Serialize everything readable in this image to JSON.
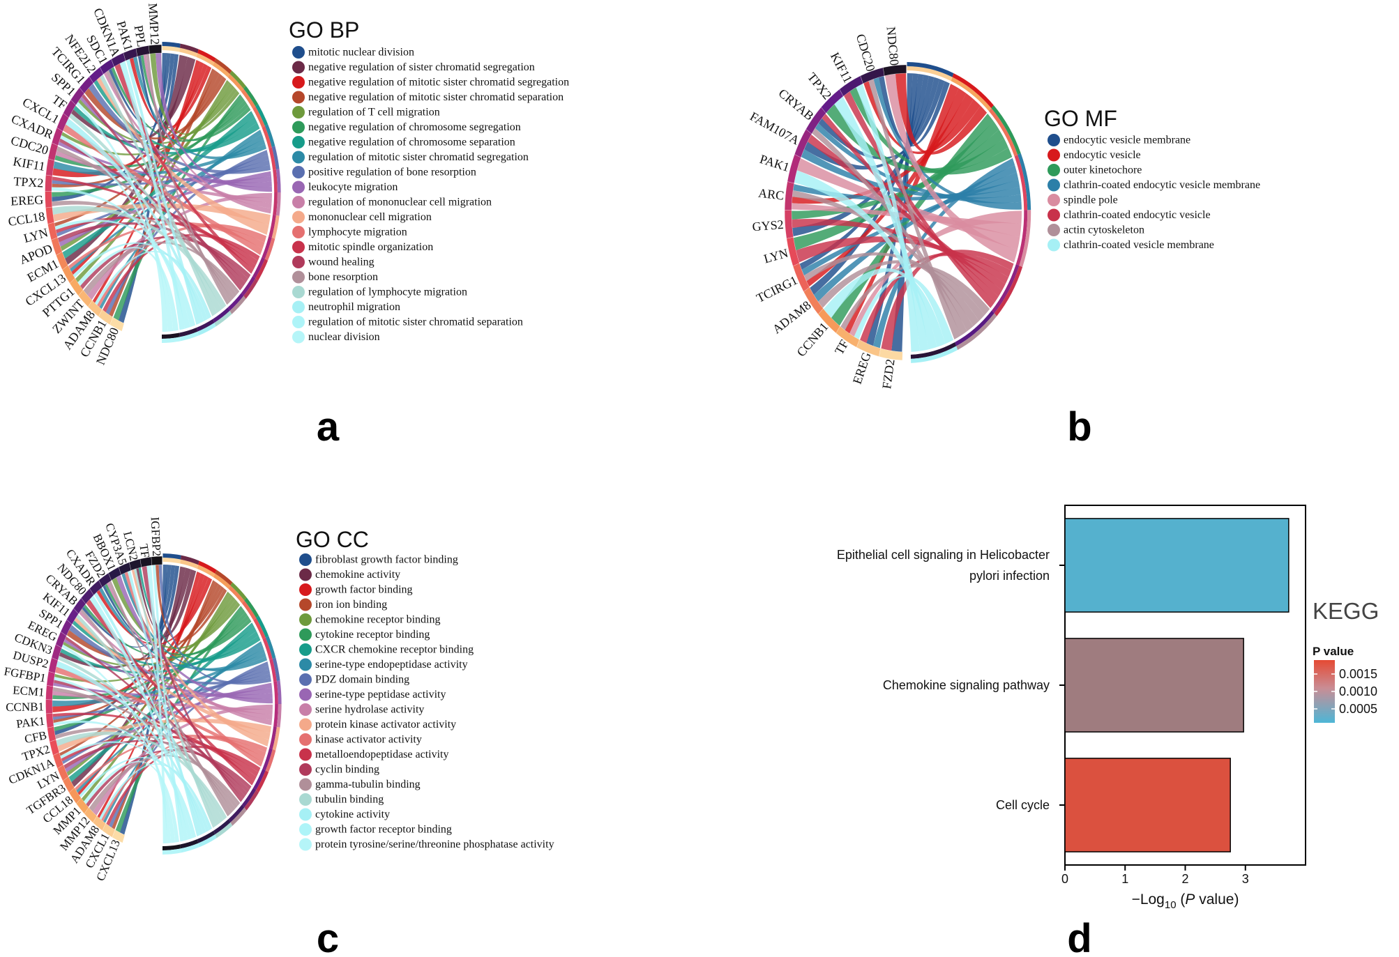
{
  "panel_labels": {
    "a": "a",
    "b": "b",
    "c": "c",
    "d": "d"
  },
  "chart_data": [
    {
      "type": "chord",
      "panel": "a",
      "title": "GO BP",
      "genes": [
        "NDC80",
        "CCNB1",
        "ADAM8",
        "ZWINT",
        "PTTG1",
        "CXCL13",
        "ECM1",
        "APOD",
        "LYN",
        "CCL18",
        "EREG",
        "TPX2",
        "KIF11",
        "CDC20",
        "CXADR",
        "CXCL1",
        "TF",
        "SPP1",
        "TCIRG1",
        "NFE2L2",
        "SDC1",
        "CDKN1A",
        "PAK1",
        "PPL",
        "MMP12"
      ],
      "legend": [
        {
          "label": "mitotic nuclear division",
          "color": "#1f4e8c"
        },
        {
          "label": "negative regulation of sister chromatid segregation",
          "color": "#6b2a47"
        },
        {
          "label": "negative regulation of mitotic sister chromatid segregation",
          "color": "#d7191c"
        },
        {
          "label": "negative regulation of mitotic sister chromatid separation",
          "color": "#b5472a"
        },
        {
          "label": "regulation of T cell migration",
          "color": "#6e9a3c"
        },
        {
          "label": "negative regulation of chromosome segregation",
          "color": "#2e9a5a"
        },
        {
          "label": "negative regulation of chromosome separation",
          "color": "#179c8a"
        },
        {
          "label": "regulation of mitotic sister chromatid segregation",
          "color": "#2c8aa6"
        },
        {
          "label": "positive regulation of bone resorption",
          "color": "#5a6fb0"
        },
        {
          "label": "leukocyte migration",
          "color": "#9966b3"
        },
        {
          "label": "regulation of mononuclear cell migration",
          "color": "#c87fa8"
        },
        {
          "label": "mononuclear cell migration",
          "color": "#f4a98a"
        },
        {
          "label": "lymphocyte migration",
          "color": "#e57070"
        },
        {
          "label": "mitotic spindle organization",
          "color": "#c8324b"
        },
        {
          "label": "wound healing",
          "color": "#b03a5b"
        },
        {
          "label": "bone resorption",
          "color": "#b08f99"
        },
        {
          "label": "regulation of lymphocyte migration",
          "color": "#a9d9d2"
        },
        {
          "label": "neutrophil migration",
          "color": "#a6f0f5"
        },
        {
          "label": "regulation of mitotic sister chromatid separation",
          "color": "#aef4f8"
        },
        {
          "label": "nuclear division",
          "color": "#b5f5f8"
        }
      ]
    },
    {
      "type": "chord",
      "panel": "b",
      "title": "GO MF",
      "genes": [
        "FZD2",
        "EREG",
        "TF",
        "CCNB1",
        "ADAM8",
        "TCIRG1",
        "LYN",
        "GYS2",
        "ARC",
        "PAK1",
        "FAM107A",
        "CRYAB",
        "TPX2",
        "KIF11",
        "CDC20",
        "NDC80"
      ],
      "legend": [
        {
          "label": "endocytic vesicle membrane",
          "color": "#1f4e8c"
        },
        {
          "label": "endocytic vesicle",
          "color": "#d7191c"
        },
        {
          "label": "outer kinetochore",
          "color": "#2e9a5a"
        },
        {
          "label": "clathrin-coated endocytic vesicle membrane",
          "color": "#2c7fa8"
        },
        {
          "label": "spindle pole",
          "color": "#d98ca0"
        },
        {
          "label": "clathrin-coated endocytic vesicle",
          "color": "#c8324b"
        },
        {
          "label": "actin cytoskeleton",
          "color": "#b08f99"
        },
        {
          "label": "clathrin-coated vesicle membrane",
          "color": "#a6f0f5"
        }
      ]
    },
    {
      "type": "chord",
      "panel": "c",
      "title": "GO CC",
      "genes": [
        "CXCL13",
        "CXCL1",
        "ADAM8",
        "MMP12",
        "MMP1",
        "CCL18",
        "TGFBR3",
        "LYN",
        "CDKN1A",
        "TPX2",
        "CFB",
        "PAK1",
        "CCNB1",
        "ECM1",
        "FGFBP1",
        "DUSP2",
        "CDKN3",
        "EREG",
        "SPP1",
        "KIF11",
        "CRYAB",
        "NDC80",
        "CXADR",
        "FZD2",
        "BBOX1",
        "CYP3A5",
        "LCN2",
        "TF",
        "IGFBP2"
      ],
      "legend": [
        {
          "label": "fibroblast growth factor binding",
          "color": "#1f4e8c"
        },
        {
          "label": "chemokine activity",
          "color": "#6b2a47"
        },
        {
          "label": "growth factor binding",
          "color": "#d7191c"
        },
        {
          "label": "iron ion binding",
          "color": "#b5472a"
        },
        {
          "label": "chemokine receptor binding",
          "color": "#6e9a3c"
        },
        {
          "label": "cytokine receptor binding",
          "color": "#2e9a5a"
        },
        {
          "label": "CXCR chemokine receptor binding",
          "color": "#179c8a"
        },
        {
          "label": "serine-type endopeptidase activity",
          "color": "#2c8aa6"
        },
        {
          "label": "PDZ domain binding",
          "color": "#5a6fb0"
        },
        {
          "label": "serine-type peptidase activity",
          "color": "#9966b3"
        },
        {
          "label": "serine hydrolase activity",
          "color": "#c87fa8"
        },
        {
          "label": "protein kinase activator activity",
          "color": "#f4a98a"
        },
        {
          "label": "kinase activator activity",
          "color": "#e57070"
        },
        {
          "label": "metalloendopeptidase activity",
          "color": "#c8324b"
        },
        {
          "label": "cyclin binding",
          "color": "#b03a5b"
        },
        {
          "label": "gamma-tubulin binding",
          "color": "#b08f99"
        },
        {
          "label": "tubulin binding",
          "color": "#a9d9d2"
        },
        {
          "label": "cytokine activity",
          "color": "#a6f0f5"
        },
        {
          "label": "growth factor receptor binding",
          "color": "#aef4f8"
        },
        {
          "label": "protein tyrosine/serine/threonine phosphatase activity",
          "color": "#b5f5f8"
        }
      ]
    },
    {
      "type": "bar",
      "panel": "d",
      "orientation": "horizontal",
      "title": "KEGG",
      "categories": [
        [
          "Epithelial cell signaling in Helicobacter",
          "pylori infection"
        ],
        [
          "Chemokine signaling pathway"
        ],
        [
          "Cell cycle"
        ]
      ],
      "values": [
        3.72,
        2.97,
        2.75
      ],
      "pvalues": [
        0.00019,
        0.00107,
        0.00178
      ],
      "xlabel": {
        "prefix": "−Log",
        "sub": "10",
        "open": " (",
        "italic": "P",
        "close": " value)"
      },
      "xlim": [
        0,
        4
      ],
      "xticks": [
        0,
        1,
        2,
        3
      ],
      "legend": {
        "title": "P value",
        "range": [
          0.0001,
          0.0019
        ],
        "ticks": [
          0.0015,
          0.001,
          0.0005
        ],
        "tick_labels": [
          "0.0015",
          "0.0010",
          "0.0005"
        ],
        "color_low": "#4db6d6",
        "color_high": "#e54a34"
      }
    }
  ]
}
